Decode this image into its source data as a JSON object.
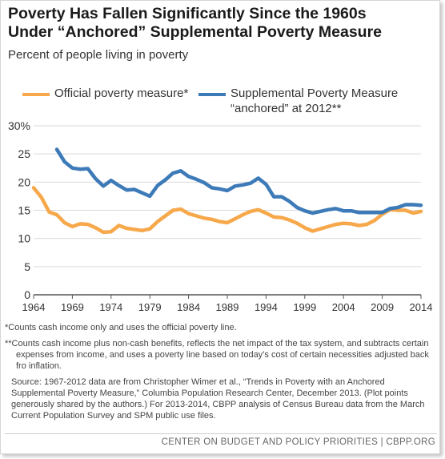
{
  "header": {
    "title_line1": "Poverty Has Fallen Significantly Since the 1960s",
    "title_line2": "Under “Anchored” Supplemental Poverty Measure",
    "subtitle": "Percent of people living in poverty"
  },
  "legend": {
    "official_label": "Official poverty measure*",
    "spm_label_line1": "Supplemental Poverty Measure",
    "spm_label_line2": "“anchored” at 2012**"
  },
  "colors": {
    "official": "#f6a84a",
    "spm": "#3d7ab8",
    "axis": "#555555",
    "grid": "#d9d9d9"
  },
  "chart_data": {
    "type": "line",
    "xlim": [
      1964,
      2014
    ],
    "ylim": [
      0,
      30
    ],
    "y_ticks": [
      0,
      5,
      10,
      15,
      20,
      25,
      30
    ],
    "y_tick_labels": [
      "0",
      "5",
      "10",
      "15",
      "20",
      "25",
      "30%"
    ],
    "x_ticks": [
      1964,
      1969,
      1974,
      1979,
      1984,
      1989,
      1994,
      1999,
      2004,
      2009,
      2014
    ],
    "x_tick_labels": [
      "1964",
      "1969",
      "1974",
      "1979",
      "1984",
      "1989",
      "1994",
      "1999",
      "2004",
      "2009",
      "2014"
    ],
    "grid": "horizontal",
    "series": [
      {
        "name": "Official poverty measure*",
        "color": "#f6a84a",
        "x": [
          1964,
          1965,
          1966,
          1967,
          1968,
          1969,
          1970,
          1971,
          1972,
          1973,
          1974,
          1975,
          1976,
          1977,
          1978,
          1979,
          1980,
          1981,
          1982,
          1983,
          1984,
          1985,
          1986,
          1987,
          1988,
          1989,
          1990,
          1991,
          1992,
          1993,
          1994,
          1995,
          1996,
          1997,
          1998,
          1999,
          2000,
          2001,
          2002,
          2003,
          2004,
          2005,
          2006,
          2007,
          2008,
          2009,
          2010,
          2011,
          2012,
          2013,
          2014
        ],
        "values": [
          19.0,
          17.3,
          14.7,
          14.2,
          12.8,
          12.1,
          12.6,
          12.5,
          11.9,
          11.1,
          11.2,
          12.3,
          11.8,
          11.6,
          11.4,
          11.7,
          13.0,
          14.0,
          15.0,
          15.2,
          14.4,
          14.0,
          13.6,
          13.4,
          13.0,
          12.8,
          13.5,
          14.2,
          14.8,
          15.1,
          14.5,
          13.8,
          13.7,
          13.3,
          12.7,
          11.9,
          11.3,
          11.7,
          12.1,
          12.5,
          12.7,
          12.6,
          12.3,
          12.5,
          13.2,
          14.3,
          15.1,
          15.0,
          15.0,
          14.5,
          14.8
        ]
      },
      {
        "name": "Supplemental Poverty Measure “anchored” at 2012**",
        "color": "#3d7ab8",
        "x": [
          1967,
          1968,
          1969,
          1970,
          1971,
          1972,
          1973,
          1974,
          1975,
          1976,
          1977,
          1978,
          1979,
          1980,
          1981,
          1982,
          1983,
          1984,
          1985,
          1986,
          1987,
          1988,
          1989,
          1990,
          1991,
          1992,
          1993,
          1994,
          1995,
          1996,
          1997,
          1998,
          1999,
          2000,
          2001,
          2002,
          2003,
          2004,
          2005,
          2006,
          2007,
          2008,
          2009,
          2010,
          2011,
          2012,
          2013,
          2014
        ],
        "values": [
          25.8,
          23.6,
          22.5,
          22.3,
          22.4,
          20.6,
          19.3,
          20.3,
          19.4,
          18.6,
          18.7,
          18.1,
          17.5,
          19.4,
          20.4,
          21.6,
          22.0,
          21.0,
          20.5,
          19.9,
          19.0,
          18.8,
          18.5,
          19.3,
          19.5,
          19.8,
          20.7,
          19.6,
          17.4,
          17.4,
          16.6,
          15.5,
          14.9,
          14.5,
          14.8,
          15.1,
          15.3,
          14.9,
          14.9,
          14.6,
          14.6,
          14.6,
          14.6,
          15.3,
          15.5,
          16.0,
          16.0,
          15.9
        ]
      }
    ]
  },
  "notes": {
    "official": "*Counts cash income only and uses the official poverty line.",
    "spm": "**Counts cash income plus non-cash benefits, reflects the net impact of the tax system, and subtracts certain expenses from income, and uses a poverty line based on today’s cost of certain necessities adjusted back fro inflation.",
    "source": "Source: 1967-2012 data are from Christopher Wimer et al., “Trends in Poverty with an Anchored Supplemental Poverty Measure,” Columbia Population Research Center, December 2013. (Plot points generously shared by the authors.) For 2013-2014, CBPP analysis of Census Bureau data from the March Current Population Survey and SPM public use files."
  },
  "footer": {
    "organization": "CENTER ON BUDGET AND POLICY PRIORITIES | CBPP.ORG"
  }
}
